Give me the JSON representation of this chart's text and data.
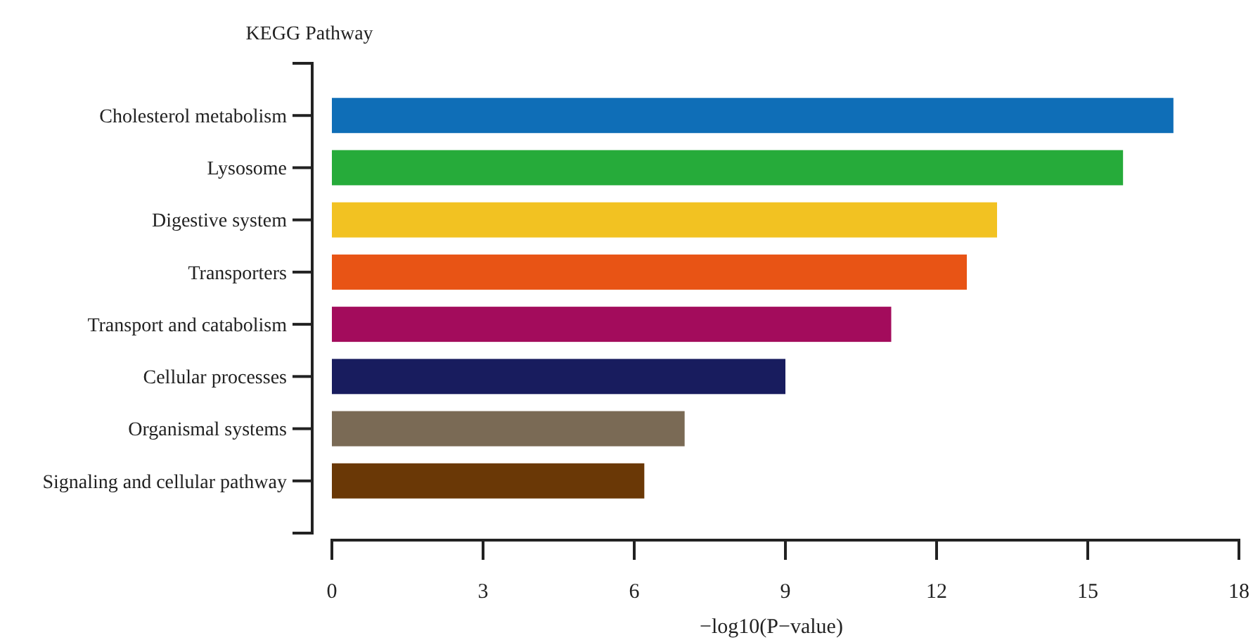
{
  "chart_data": {
    "type": "bar",
    "orientation": "horizontal",
    "ylabel": "KEGG Pathway",
    "xlabel": "−log10(P−value)",
    "categories": [
      "Cholesterol metabolism",
      "Lysosome",
      "Digestive system",
      "Transporters",
      "Transport and catabolism",
      "Cellular processes",
      "Organismal systems",
      "Signaling and cellular pathway"
    ],
    "values": [
      16.7,
      15.7,
      13.2,
      12.6,
      11.1,
      9.0,
      7.0,
      6.2
    ],
    "colors": [
      "#0f6eb7",
      "#26ab3a",
      "#f2c222",
      "#e85415",
      "#a30c5c",
      "#181c5e",
      "#7a6a55",
      "#6a3806"
    ],
    "xlim": [
      0,
      18
    ],
    "xticks": [
      0,
      3,
      6,
      9,
      12,
      15,
      18
    ],
    "grid": false
  }
}
